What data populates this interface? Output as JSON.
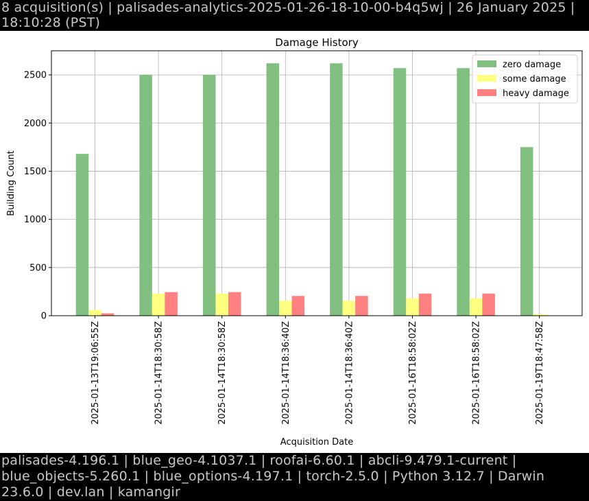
{
  "header": {
    "text": "8 acquisition(s) | palisades-analytics-2025-01-26-18-10-00-b4q5wj | 26 January 2025 | 18:10:28 (PST)"
  },
  "footer": {
    "text": "palisades-4.196.1 | blue_geo-4.1037.1 | roofai-6.60.1 | abcli-9.479.1-current | blue_objects-5.260.1 | blue_options-4.197.1 | torch-2.5.0 | Python 3.12.7 | Darwin 23.6.0 | dev.lan | kamangir"
  },
  "chart_data": {
    "type": "bar",
    "title": "Damage History",
    "xlabel": "Acquisition Date",
    "ylabel": "Building Count",
    "ylim": [
      0,
      2750
    ],
    "yticks": [
      0,
      500,
      1000,
      1500,
      2000,
      2500
    ],
    "grid": true,
    "legend_position": "top-right",
    "categories": [
      "2025-01-13T19:06:55Z",
      "2025-01-14T18:30:58Z",
      "2025-01-14T18:30:58Z",
      "2025-01-14T18:36:40Z",
      "2025-01-14T18:36:40Z",
      "2025-01-16T18:58:02Z",
      "2025-01-16T18:58:02Z",
      "2025-01-19T18:47:58Z"
    ],
    "series": [
      {
        "name": "zero damage",
        "color": "#80bf80",
        "values": [
          1680,
          2500,
          2500,
          2620,
          2620,
          2570,
          2570,
          1750
        ]
      },
      {
        "name": "some damage",
        "color": "#ffff80",
        "values": [
          60,
          230,
          230,
          155,
          155,
          180,
          180,
          15
        ]
      },
      {
        "name": "heavy damage",
        "color": "#ff8080",
        "values": [
          25,
          245,
          245,
          205,
          205,
          230,
          230,
          0
        ]
      }
    ]
  }
}
